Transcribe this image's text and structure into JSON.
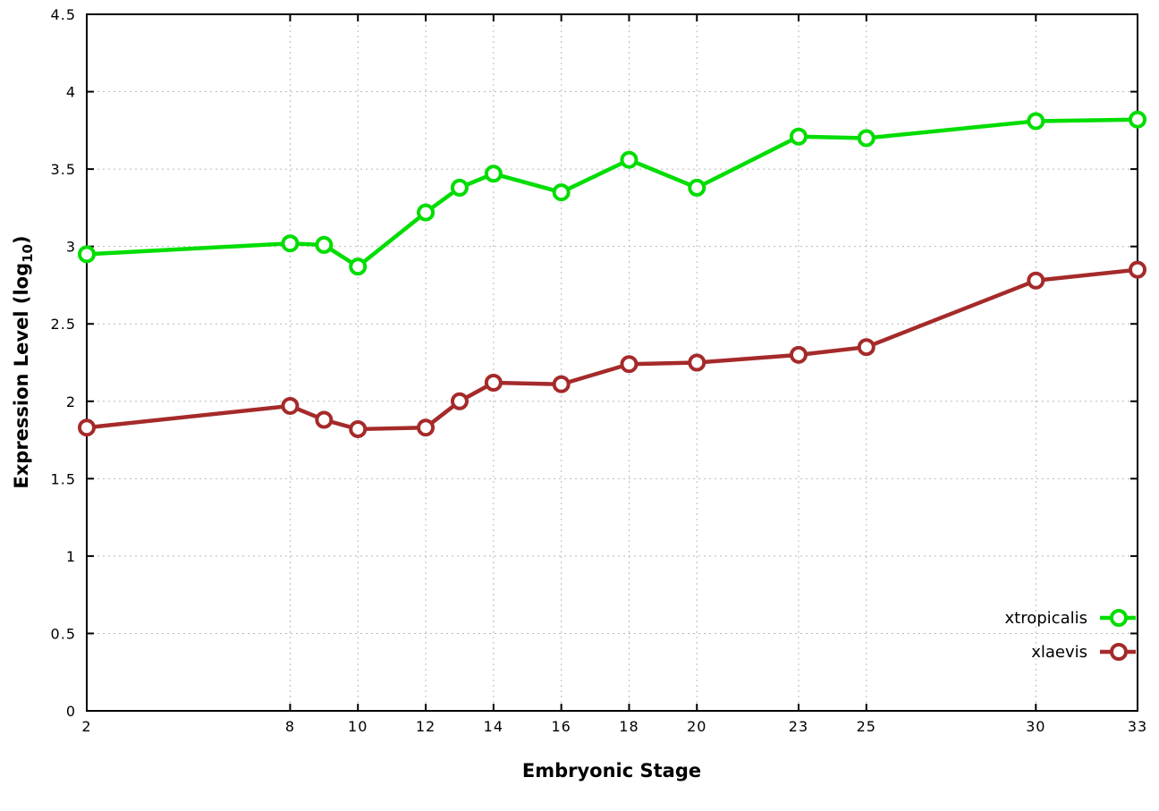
{
  "figure": {
    "background": "#ffffff",
    "border_color": "#000000",
    "grid_color": "#b8b8b8",
    "xlabel": "Embryonic Stage",
    "ylabel_prefix": "Expression Level (log",
    "ylabel_sub": "10",
    "ylabel_suffix": ")"
  },
  "chart_data": {
    "type": "line",
    "title": "",
    "xlabel": "Embryonic Stage",
    "ylabel": "Expression Level (log10)",
    "xlim": [
      2,
      33
    ],
    "ylim": [
      0,
      4.5
    ],
    "x_ticks": [
      2,
      8,
      10,
      12,
      14,
      16,
      18,
      20,
      23,
      25,
      30,
      33
    ],
    "y_ticks": [
      0,
      0.5,
      1,
      1.5,
      2,
      2.5,
      3,
      3.5,
      4,
      4.5
    ],
    "grid": true,
    "legend_position": "bottom-right",
    "x": [
      2,
      8,
      9,
      10,
      12,
      13,
      14,
      16,
      18,
      20,
      23,
      25,
      30,
      33
    ],
    "series": [
      {
        "name": "xtropicalis",
        "color": "#00dd00",
        "values": [
          2.95,
          3.02,
          3.01,
          2.87,
          3.22,
          3.38,
          3.47,
          3.35,
          3.56,
          3.38,
          3.71,
          3.7,
          3.81,
          3.82
        ]
      },
      {
        "name": "xlaevis",
        "color": "#a52a2a",
        "values": [
          1.83,
          1.97,
          1.88,
          1.82,
          1.83,
          2.0,
          2.12,
          2.11,
          2.24,
          2.25,
          2.3,
          2.35,
          2.78,
          2.85
        ]
      }
    ]
  }
}
